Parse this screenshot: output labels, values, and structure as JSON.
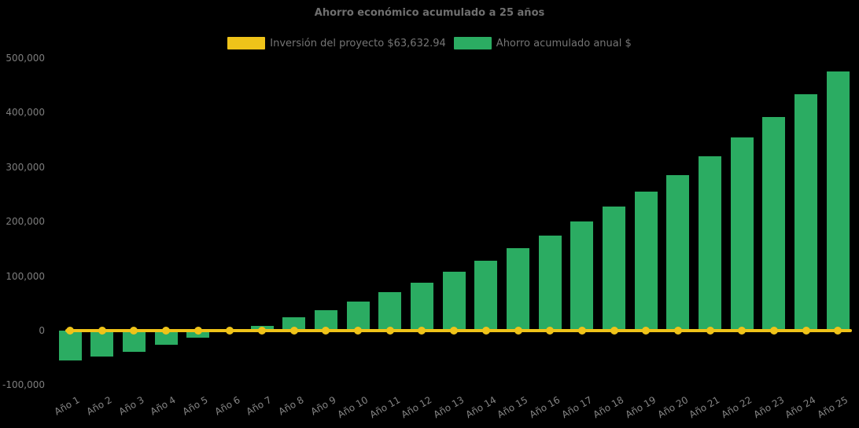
{
  "title": "Ahorro económico acumulado a 25 años",
  "legend": {
    "items": [
      {
        "label": "Inversión del proyecto $63,632.94",
        "color": "#EFC319",
        "series_type": "line"
      },
      {
        "label": "Ahorro acumulado anual $",
        "color": "#2BAC62",
        "series_type": "bar"
      }
    ]
  },
  "chart_data": {
    "type": "bar",
    "title": "Ahorro económico acumulado a 25 años",
    "categories": [
      "Año 1",
      "Año 2",
      "Año 3",
      "Año 4",
      "Año 5",
      "Año 6",
      "Año 7",
      "Año 8",
      "Año 9",
      "Año 10",
      "Año 11",
      "Año 12",
      "Año 13",
      "Año 14",
      "Año 15",
      "Año 16",
      "Año 17",
      "Año 18",
      "Año 19",
      "Año 20",
      "Año 21",
      "Año 22",
      "Año 23",
      "Año 24",
      "Año 25"
    ],
    "series": [
      {
        "name": "Ahorro acumulado anual $",
        "type": "bar",
        "color": "#2BAC62",
        "values": [
          -55000,
          -48000,
          -39000,
          -26000,
          -13000,
          -2000,
          9000,
          24000,
          37000,
          54000,
          70000,
          88000,
          108000,
          128000,
          151000,
          174000,
          200000,
          228000,
          255000,
          286000,
          320000,
          354000,
          392000,
          433000,
          476000
        ]
      },
      {
        "name": "Inversión del proyecto $63,632.94",
        "type": "line",
        "color": "#EFC319",
        "marker": "circle",
        "values": [
          0,
          0,
          0,
          0,
          0,
          0,
          0,
          0,
          0,
          0,
          0,
          0,
          0,
          0,
          0,
          0,
          0,
          0,
          0,
          0,
          0,
          0,
          0,
          0,
          0
        ]
      }
    ],
    "xlabel": "",
    "ylabel": "",
    "ylim": [
      -100000,
      500000
    ],
    "yticks": [
      {
        "value": 500000,
        "label": "500,000"
      },
      {
        "value": 400000,
        "label": "400,000"
      },
      {
        "value": 300000,
        "label": "300,000"
      },
      {
        "value": 200000,
        "label": "200,000"
      },
      {
        "value": 100000,
        "label": "100,000"
      },
      {
        "value": 0,
        "label": "0"
      },
      {
        "value": -100000,
        "label": "-100,000"
      }
    ],
    "grid": false,
    "legend_position": "top",
    "background": "#000000"
  }
}
